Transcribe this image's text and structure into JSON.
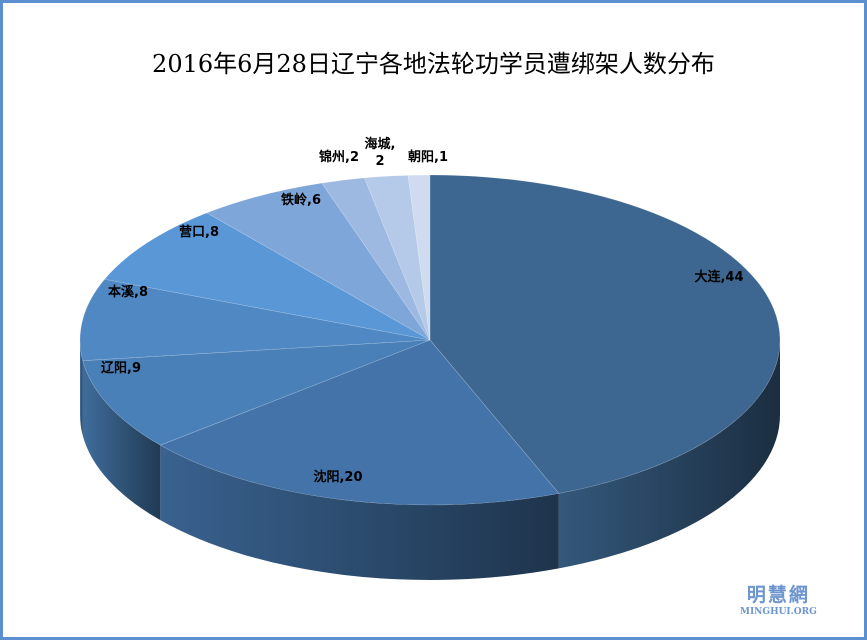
{
  "chart_data": {
    "type": "pie",
    "title": "2016年6月28日辽宁各地法轮功学员遭绑架人数分布",
    "categories": [
      "大连",
      "沈阳",
      "辽阳",
      "本溪",
      "营口",
      "铁岭",
      "锦州",
      "海城",
      "朝阳"
    ],
    "values": [
      44,
      20,
      9,
      8,
      8,
      6,
      2,
      2,
      1
    ],
    "labels": [
      "大连,44",
      "沈阳,20",
      "辽阳,9",
      "本溪,8",
      "营口,8",
      "铁岭,6",
      "锦州,2",
      "海城,\n2",
      "朝阳,1"
    ],
    "colors": [
      "#3d6791",
      "#4373a8",
      "#4a80b8",
      "#4f88c3",
      "#5a97d6",
      "#7ea6d9",
      "#9db9e2",
      "#b5c9e8",
      "#cfdcef"
    ],
    "style": "3d",
    "legend": "none"
  },
  "watermark": {
    "cn": "明慧網",
    "en": "MINGHUI.ORG"
  },
  "frame_color": "#5b8fd0"
}
